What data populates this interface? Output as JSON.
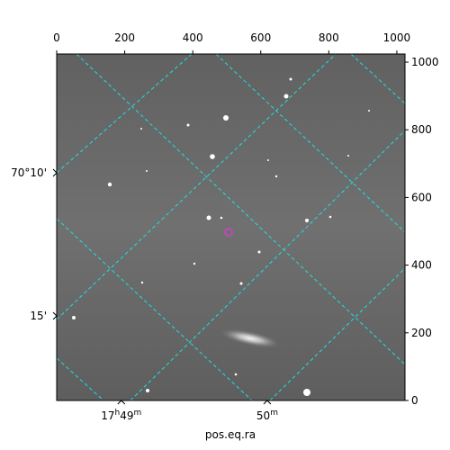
{
  "chart_data": {
    "type": "image",
    "xlabel": "pos.eq.ra",
    "xlim": [
      0,
      1024
    ],
    "ylim": [
      0,
      1024
    ],
    "xticks": [
      0,
      200,
      400,
      600,
      800,
      1000
    ],
    "yticks": [
      0,
      200,
      400,
      600,
      800,
      1000
    ],
    "world_xticks": [
      {
        "value": 190,
        "label": "17h49m"
      },
      {
        "value": 619,
        "label": "50m"
      }
    ],
    "world_yticks": [
      {
        "value": 673,
        "label": "70°10'"
      },
      {
        "value": 250,
        "label": "15'"
      }
    ]
  }
}
